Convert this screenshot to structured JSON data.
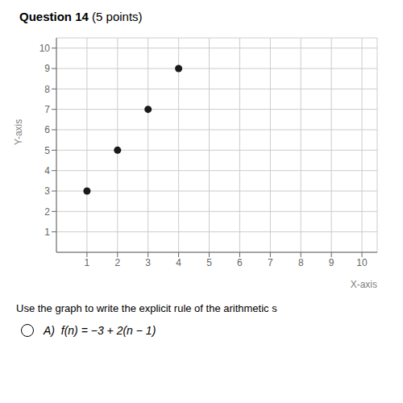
{
  "chart_data": {
    "type": "scatter",
    "title": "Question 14",
    "subtitle": "(5 points)",
    "xlabel": "X-axis",
    "ylabel": "Y-axis",
    "x": [
      1,
      2,
      3,
      4
    ],
    "values": [
      3,
      5,
      7,
      9
    ],
    "color": "#1a1a1a",
    "xlim": [
      0,
      10.5
    ],
    "ylim": [
      0,
      10.5
    ],
    "xticks": [
      1,
      2,
      3,
      4,
      5,
      6,
      7,
      8,
      9,
      10
    ],
    "yticks": [
      1,
      2,
      3,
      4,
      5,
      6,
      7,
      8,
      9,
      10
    ],
    "grid": true,
    "annotations": [
      "Use the graph to write the explicit rule of the arithmetic s",
      "A)  f(n) = −3 + 2(n − 1)"
    ]
  }
}
